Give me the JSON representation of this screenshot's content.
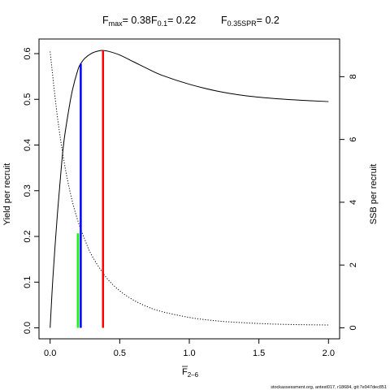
{
  "title": {
    "fmax_label": "F",
    "fmax_sub": "max",
    "fmax_value": "= 0.38",
    "f01_label": "F",
    "f01_sub": "0.1",
    "f01_value": "= 0.22",
    "fspr_label": "F",
    "fspr_sub": "0.35SPR",
    "fspr_value": "= 0.2"
  },
  "footer": "stockassessment.org, antest017, r18684, git:7e947dec851",
  "chart_data": {
    "type": "line",
    "xlabel_main": "F",
    "xlabel_sub": "2–6",
    "ylabel_left": "Yield per recruit",
    "ylabel_right": "SSB per recruit",
    "xlim": [
      -0.08,
      2.08
    ],
    "ylim_left": [
      -0.024,
      0.632
    ],
    "ylim_right": [
      -0.35,
      9.2
    ],
    "x_ticks": [
      0,
      0.5,
      1,
      1.5,
      2
    ],
    "x_tick_labels": [
      "0.0",
      "0.5",
      "1.0",
      "1.5",
      "2.0"
    ],
    "y_left_ticks": [
      0,
      0.1,
      0.2,
      0.3,
      0.4,
      0.5,
      0.6
    ],
    "y_left_tick_labels": [
      "0.0",
      "0.1",
      "0.2",
      "0.3",
      "0.4",
      "0.5",
      "0.6"
    ],
    "y_right_ticks": [
      0,
      2,
      4,
      6,
      8
    ],
    "y_right_tick_labels": [
      "0",
      "2",
      "4",
      "6",
      "8"
    ],
    "series": [
      {
        "axis": "left",
        "color": "#000000",
        "dash": "none",
        "x": [
          0,
          0.02,
          0.05,
          0.08,
          0.1,
          0.13,
          0.16,
          0.2,
          0.22,
          0.25,
          0.3,
          0.35,
          0.38,
          0.42,
          0.5,
          0.6,
          0.7,
          0.8,
          1.0,
          1.2,
          1.4,
          1.6,
          1.8,
          2.0
        ],
        "values": [
          0,
          0.11,
          0.24,
          0.35,
          0.41,
          0.47,
          0.52,
          0.565,
          0.578,
          0.59,
          0.601,
          0.606,
          0.607,
          0.605,
          0.597,
          0.582,
          0.567,
          0.553,
          0.533,
          0.518,
          0.508,
          0.502,
          0.498,
          0.495
        ]
      },
      {
        "axis": "right",
        "color": "#000000",
        "dash": "dotted",
        "x": [
          0,
          0.05,
          0.1,
          0.15,
          0.2,
          0.25,
          0.3,
          0.4,
          0.5,
          0.6,
          0.7,
          0.8,
          1.0,
          1.2,
          1.4,
          1.6,
          1.8,
          2.0
        ],
        "values": [
          8.8,
          6.8,
          5.3,
          4.2,
          3.4,
          2.8,
          2.3,
          1.62,
          1.18,
          0.88,
          0.67,
          0.52,
          0.33,
          0.22,
          0.16,
          0.12,
          0.1,
          0.09
        ]
      }
    ],
    "reference_lines": [
      {
        "x": 0.38,
        "y": 0.607,
        "color": "#ff0000"
      },
      {
        "x": 0.22,
        "y": 0.578,
        "color": "#0000ff"
      },
      {
        "x": 0.2,
        "y": 0.207,
        "color": "#00ff00"
      }
    ],
    "grid": false
  }
}
